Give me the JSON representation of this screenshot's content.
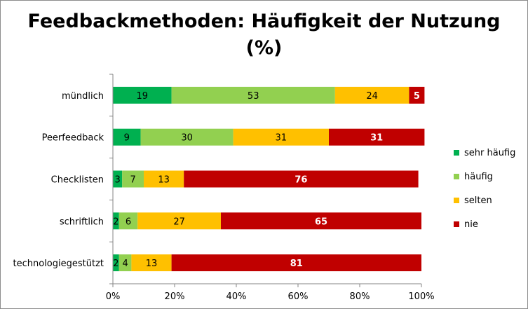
{
  "chart_data": {
    "type": "bar",
    "orientation": "horizontal",
    "stacked": "100%",
    "title": "Feedbackmethoden: Häufigkeit der Nutzung",
    "title_line2": "(%)",
    "categories": [
      "mündlich",
      "Peerfeedback",
      "Checklisten",
      "schriftlich",
      "technologiegestützt"
    ],
    "series": [
      {
        "name": "sehr häufig",
        "color": "#00b050",
        "values": [
          19,
          9,
          3,
          2,
          2
        ]
      },
      {
        "name": "häufig",
        "color": "#92d050",
        "values": [
          53,
          30,
          7,
          6,
          4
        ]
      },
      {
        "name": "selten",
        "color": "#ffc000",
        "values": [
          24,
          31,
          13,
          27,
          13
        ]
      },
      {
        "name": "nie",
        "color": "#c00000",
        "label_color": "#ffffff",
        "values": [
          5,
          31,
          76,
          65,
          81
        ]
      }
    ],
    "x_ticks": [
      "0%",
      "20%",
      "40%",
      "60%",
      "80%",
      "100%"
    ],
    "xlim": [
      0,
      100
    ],
    "grid": false,
    "legend_position": "right"
  }
}
